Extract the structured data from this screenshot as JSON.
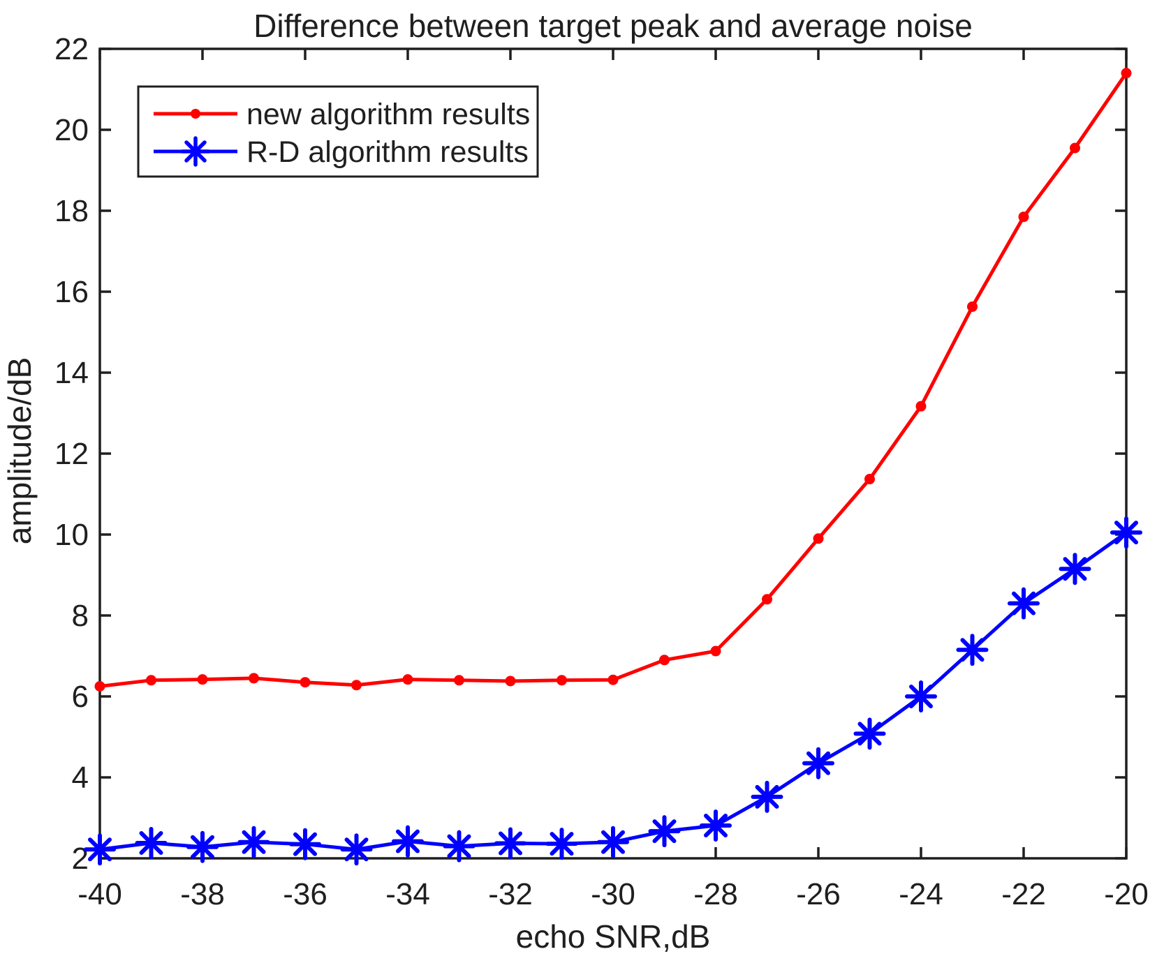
{
  "chart_data": {
    "type": "line",
    "title": "Difference between target peak and average noise",
    "xlabel": "echo SNR,dB",
    "ylabel": "amplitude/dB",
    "xlim": [
      -40,
      -20
    ],
    "ylim": [
      2,
      22
    ],
    "x_ticks": [
      -40,
      -38,
      -36,
      -34,
      -32,
      -30,
      -28,
      -26,
      -24,
      -22,
      -20
    ],
    "y_ticks": [
      2,
      4,
      6,
      8,
      10,
      12,
      14,
      16,
      18,
      20,
      22
    ],
    "grid": false,
    "legend_position": "top-left",
    "x": [
      -40,
      -39,
      -38,
      -37,
      -36,
      -35,
      -34,
      -33,
      -32,
      -31,
      -30,
      -29,
      -28,
      -27,
      -26,
      -25,
      -24,
      -23,
      -22,
      -21,
      -20
    ],
    "series": [
      {
        "name": "new algorithm results",
        "color": "#ff0000",
        "marker": "dot",
        "values": [
          6.25,
          6.4,
          6.42,
          6.45,
          6.35,
          6.28,
          6.42,
          6.4,
          6.38,
          6.4,
          6.41,
          6.9,
          7.12,
          8.4,
          9.9,
          11.37,
          13.17,
          15.63,
          17.85,
          19.55,
          21.4
        ]
      },
      {
        "name": "R-D algorithm results",
        "color": "#0000ff",
        "marker": "asterisk",
        "values": [
          2.22,
          2.38,
          2.28,
          2.4,
          2.35,
          2.22,
          2.42,
          2.3,
          2.37,
          2.36,
          2.4,
          2.67,
          2.81,
          3.52,
          4.35,
          5.08,
          6.0,
          7.15,
          8.3,
          9.15,
          10.05
        ]
      }
    ]
  },
  "colors": {
    "axis": "#1f1f1f",
    "text": "#1f1f1f",
    "background": "#ffffff",
    "red_series": "#ff0000",
    "blue_series": "#0000ff"
  }
}
